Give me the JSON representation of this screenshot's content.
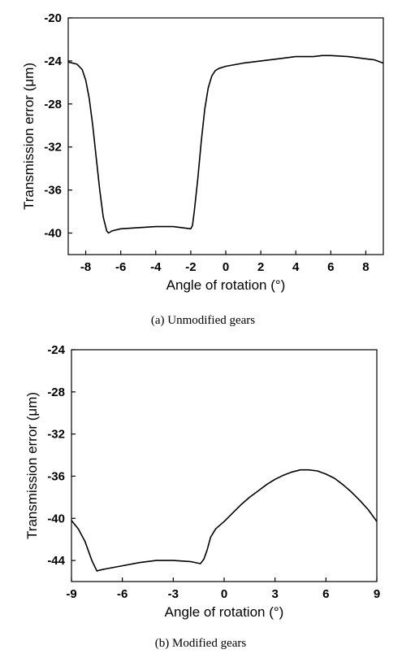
{
  "chart_data": [
    {
      "type": "line",
      "caption": "(a) Unmodified gears",
      "xlabel": "Angle of rotation (°)",
      "ylabel": "Transmission error (μm)",
      "xlim": [
        -9,
        9
      ],
      "ylim": [
        -42,
        -20
      ],
      "xticks": [
        -8,
        -6,
        -4,
        -2,
        0,
        2,
        4,
        6,
        8
      ],
      "xtick_labels": [
        "-8",
        "-6",
        "-4",
        "-2",
        "0",
        "2",
        "4",
        "6",
        "8"
      ],
      "yticks": [
        -40,
        -36,
        -32,
        -28,
        -24,
        -20
      ],
      "ytick_labels": [
        "-40",
        "-36",
        "-32",
        "-28",
        "-24",
        "-20"
      ],
      "grid": false,
      "series": [
        {
          "x": [
            -9.0,
            -8.5,
            -8.2,
            -8.0,
            -7.8,
            -7.6,
            -7.4,
            -7.2,
            -7.0,
            -6.8,
            -6.7,
            -6.5,
            -6.0,
            -5.0,
            -4.0,
            -3.0,
            -2.5,
            -2.0,
            -1.9,
            -1.8,
            -1.6,
            -1.4,
            -1.2,
            -1.0,
            -0.8,
            -0.6,
            -0.4,
            0.0,
            1.0,
            2.0,
            3.0,
            4.0,
            5.0,
            5.5,
            6.0,
            7.0,
            8.0,
            8.5,
            9.0
          ],
          "y": [
            -24.1,
            -24.3,
            -24.8,
            -25.8,
            -27.5,
            -30.0,
            -33.0,
            -36.0,
            -38.5,
            -39.8,
            -40.0,
            -39.8,
            -39.6,
            -39.5,
            -39.4,
            -39.4,
            -39.5,
            -39.6,
            -39.3,
            -38.0,
            -35.0,
            -31.5,
            -28.5,
            -26.5,
            -25.4,
            -24.9,
            -24.7,
            -24.5,
            -24.2,
            -24.0,
            -23.8,
            -23.6,
            -23.6,
            -23.5,
            -23.5,
            -23.6,
            -23.8,
            -23.9,
            -24.2
          ]
        }
      ]
    },
    {
      "type": "line",
      "caption": "(b) Modified gears",
      "xlabel": "Angle of rotation (°)",
      "ylabel": "Transmission error (μm)",
      "xlim": [
        -9,
        9
      ],
      "ylim": [
        -46,
        -24
      ],
      "xticks": [
        -9,
        -6,
        -3,
        0,
        3,
        6,
        9
      ],
      "xtick_labels": [
        "-9",
        "-6",
        "-3",
        "0",
        "3",
        "6",
        "9"
      ],
      "yticks": [
        -44,
        -40,
        -36,
        -32,
        -28,
        -24
      ],
      "ytick_labels": [
        "-44",
        "-40",
        "-36",
        "-32",
        "-28",
        "-24"
      ],
      "grid": false,
      "series": [
        {
          "x": [
            -9.0,
            -8.6,
            -8.2,
            -7.8,
            -7.5,
            -7.3,
            -7.0,
            -6.0,
            -5.0,
            -4.0,
            -3.0,
            -2.0,
            -1.4,
            -1.2,
            -1.0,
            -0.8,
            -0.5,
            0.0,
            0.5,
            1.0,
            1.5,
            2.0,
            2.5,
            3.0,
            3.5,
            4.0,
            4.5,
            5.0,
            5.5,
            6.0,
            6.5,
            7.0,
            7.5,
            8.0,
            8.5,
            9.0
          ],
          "y": [
            -40.2,
            -41.0,
            -42.2,
            -44.0,
            -45.0,
            -44.9,
            -44.8,
            -44.5,
            -44.2,
            -44.0,
            -44.0,
            -44.1,
            -44.3,
            -43.9,
            -43.0,
            -41.8,
            -41.0,
            -40.3,
            -39.5,
            -38.7,
            -38.0,
            -37.4,
            -36.8,
            -36.3,
            -35.9,
            -35.6,
            -35.4,
            -35.4,
            -35.5,
            -35.8,
            -36.2,
            -36.8,
            -37.5,
            -38.3,
            -39.2,
            -40.3
          ]
        }
      ]
    }
  ]
}
